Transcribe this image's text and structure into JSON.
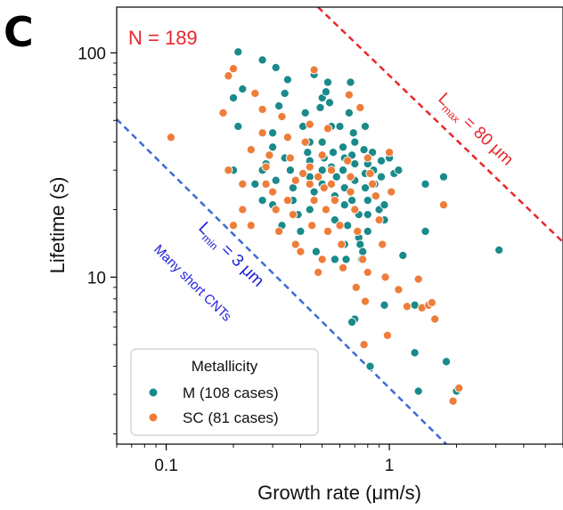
{
  "panel_label": "C",
  "annotations": {
    "count": "N = 189",
    "lmax_prefix": "L",
    "lmax_sub": "max",
    "lmax_suffix": " = 80 μm",
    "lmin_prefix": "L",
    "lmin_sub": "min",
    "lmin_suffix": " = 3 μm",
    "short_cnts": "Many short CNTs"
  },
  "legend": {
    "title": "Metallicity",
    "items": [
      {
        "label": "M (108 cases)",
        "color": "#1a8a8a"
      },
      {
        "label": "SC (81 cases)",
        "color": "#ee7d3a"
      }
    ]
  },
  "colors": {
    "lmax_line": "#e8262b",
    "lmin_line": "#3d6ad6",
    "count_text": "#e8262b",
    "short_cnts_text": "#1f1fd8"
  },
  "chart_data": {
    "type": "scatter",
    "xlabel": "Growth rate (μm/s)",
    "ylabel": "Lifetime (s)",
    "x_scale": "log",
    "y_scale": "log",
    "xlim": [
      0.06,
      6.0
    ],
    "ylim": [
      1.8,
      160
    ],
    "x_ticks": [
      {
        "value": 0.1,
        "label": "0.1"
      },
      {
        "value": 1,
        "label": "1"
      }
    ],
    "y_ticks": [
      {
        "value": 10,
        "label": "10"
      },
      {
        "value": 100,
        "label": "100"
      }
    ],
    "grid": false,
    "legend_position": "bottom-left",
    "reference_lines": [
      {
        "name": "Lmax",
        "length_um": 80,
        "style": "dashed"
      },
      {
        "name": "Lmin",
        "length_um": 3,
        "style": "dashed"
      }
    ],
    "series": [
      {
        "name": "M (108 cases)",
        "points": [
          [
            0.21,
            101
          ],
          [
            0.27,
            93
          ],
          [
            0.22,
            69
          ],
          [
            0.2,
            63
          ],
          [
            0.21,
            47
          ],
          [
            0.2,
            30
          ],
          [
            0.25,
            26
          ],
          [
            0.27,
            30
          ],
          [
            0.28,
            32
          ],
          [
            0.27,
            22
          ],
          [
            0.31,
            86
          ],
          [
            0.35,
            76
          ],
          [
            0.34,
            66
          ],
          [
            0.32,
            58
          ],
          [
            0.3,
            44
          ],
          [
            0.3,
            38
          ],
          [
            0.31,
            27
          ],
          [
            0.3,
            24
          ],
          [
            0.3,
            21
          ],
          [
            0.33,
            17
          ],
          [
            0.34,
            34
          ],
          [
            0.36,
            30
          ],
          [
            0.37,
            25
          ],
          [
            0.37,
            22
          ],
          [
            0.39,
            19
          ],
          [
            0.4,
            16
          ],
          [
            0.41,
            47
          ],
          [
            0.42,
            54
          ],
          [
            0.44,
            40
          ],
          [
            0.43,
            36
          ],
          [
            0.44,
            33
          ],
          [
            0.44,
            28
          ],
          [
            0.44,
            20
          ],
          [
            0.46,
            24
          ],
          [
            0.47,
            13
          ],
          [
            0.5,
            63
          ],
          [
            0.49,
            57
          ],
          [
            0.5,
            40
          ],
          [
            0.51,
            34
          ],
          [
            0.5,
            30
          ],
          [
            0.5,
            26
          ],
          [
            0.53,
            74
          ],
          [
            0.52,
            67
          ],
          [
            0.54,
            60
          ],
          [
            0.55,
            47
          ],
          [
            0.56,
            36
          ],
          [
            0.55,
            31
          ],
          [
            0.58,
            28
          ],
          [
            0.57,
            23
          ],
          [
            0.57,
            18
          ],
          [
            0.57,
            12
          ],
          [
            0.6,
            47
          ],
          [
            0.62,
            38
          ],
          [
            0.63,
            34
          ],
          [
            0.62,
            30
          ],
          [
            0.63,
            25
          ],
          [
            0.63,
            21
          ],
          [
            0.65,
            17
          ],
          [
            0.63,
            14
          ],
          [
            0.64,
            12
          ],
          [
            0.67,
            74
          ],
          [
            0.66,
            54
          ],
          [
            0.69,
            44
          ],
          [
            0.7,
            40
          ],
          [
            0.68,
            35
          ],
          [
            0.7,
            32
          ],
          [
            0.7,
            27
          ],
          [
            0.68,
            22
          ],
          [
            0.73,
            19
          ],
          [
            0.73,
            15
          ],
          [
            0.74,
            14
          ],
          [
            0.75,
            12
          ],
          [
            0.78,
            47
          ],
          [
            0.77,
            37
          ],
          [
            0.8,
            32
          ],
          [
            0.78,
            29
          ],
          [
            0.78,
            25
          ],
          [
            0.8,
            22
          ],
          [
            0.8,
            19
          ],
          [
            0.8,
            16
          ],
          [
            0.76,
            13
          ],
          [
            0.84,
            36
          ],
          [
            0.85,
            30
          ],
          [
            0.86,
            26
          ],
          [
            0.86,
            23
          ],
          [
            0.9,
            20
          ],
          [
            0.92,
            33
          ],
          [
            0.92,
            28
          ],
          [
            0.95,
            18
          ],
          [
            0.95,
            21
          ],
          [
            1.0,
            34
          ],
          [
            1.05,
            29
          ],
          [
            1.1,
            30
          ],
          [
            0.95,
            7.5
          ],
          [
            0.7,
            6.5
          ],
          [
            0.68,
            6.3
          ],
          [
            0.82,
            4.0
          ],
          [
            1.15,
            12.5
          ],
          [
            1.3,
            7.5
          ],
          [
            1.35,
            3.1
          ],
          [
            1.3,
            4.6
          ],
          [
            1.45,
            26
          ],
          [
            1.45,
            16
          ],
          [
            1.75,
            28
          ],
          [
            1.8,
            4.2
          ],
          [
            2.0,
            3.1
          ],
          [
            3.1,
            13.2
          ],
          [
            0.46,
            80
          ]
        ]
      },
      {
        "name": "SC (81 cases)",
        "points": [
          [
            0.105,
            42
          ],
          [
            0.18,
            54
          ],
          [
            0.19,
            79
          ],
          [
            0.19,
            30
          ],
          [
            0.2,
            85
          ],
          [
            0.22,
            26
          ],
          [
            0.22,
            20
          ],
          [
            0.2,
            17
          ],
          [
            0.24,
            17
          ],
          [
            0.25,
            66
          ],
          [
            0.24,
            37
          ],
          [
            0.28,
            31
          ],
          [
            0.28,
            26
          ],
          [
            0.29,
            35
          ],
          [
            0.27,
            56
          ],
          [
            0.27,
            44
          ],
          [
            0.3,
            24
          ],
          [
            0.31,
            20
          ],
          [
            0.32,
            16
          ],
          [
            0.35,
            42
          ],
          [
            0.36,
            34
          ],
          [
            0.38,
            27
          ],
          [
            0.35,
            22
          ],
          [
            0.37,
            19
          ],
          [
            0.38,
            14
          ],
          [
            0.4,
            13
          ],
          [
            0.41,
            29
          ],
          [
            0.42,
            40
          ],
          [
            0.44,
            31
          ],
          [
            0.46,
            84
          ],
          [
            0.44,
            26
          ],
          [
            0.46,
            22
          ],
          [
            0.45,
            17
          ],
          [
            0.48,
            10.5
          ],
          [
            0.48,
            28
          ],
          [
            0.5,
            35
          ],
          [
            0.51,
            25
          ],
          [
            0.52,
            20
          ],
          [
            0.53,
            16
          ],
          [
            0.5,
            12
          ],
          [
            0.53,
            46
          ],
          [
            0.55,
            30
          ],
          [
            0.55,
            26
          ],
          [
            0.57,
            22
          ],
          [
            0.6,
            17
          ],
          [
            0.61,
            14
          ],
          [
            0.62,
            11
          ],
          [
            0.66,
            65
          ],
          [
            0.65,
            33
          ],
          [
            0.67,
            28
          ],
          [
            0.67,
            24
          ],
          [
            0.7,
            20
          ],
          [
            0.72,
            16
          ],
          [
            0.76,
            12
          ],
          [
            0.78,
            7.8
          ],
          [
            0.77,
            5.0
          ],
          [
            0.8,
            34
          ],
          [
            0.82,
            29
          ],
          [
            0.84,
            26
          ],
          [
            0.87,
            23
          ],
          [
            0.9,
            18
          ],
          [
            0.93,
            14
          ],
          [
            0.96,
            10
          ],
          [
            0.98,
            5.5
          ],
          [
            1.0,
            36
          ],
          [
            1.02,
            24
          ],
          [
            1.1,
            8.8
          ],
          [
            1.2,
            7.4
          ],
          [
            1.35,
            9.8
          ],
          [
            1.4,
            7.3
          ],
          [
            1.5,
            7.5
          ],
          [
            1.55,
            7.7
          ],
          [
            1.6,
            6.5
          ],
          [
            1.75,
            21
          ],
          [
            1.93,
            2.8
          ],
          [
            2.05,
            3.2
          ],
          [
            0.33,
            52
          ],
          [
            0.44,
            48
          ],
          [
            0.74,
            57
          ],
          [
            0.8,
            10.5
          ],
          [
            0.71,
            9.0
          ]
        ]
      }
    ]
  }
}
